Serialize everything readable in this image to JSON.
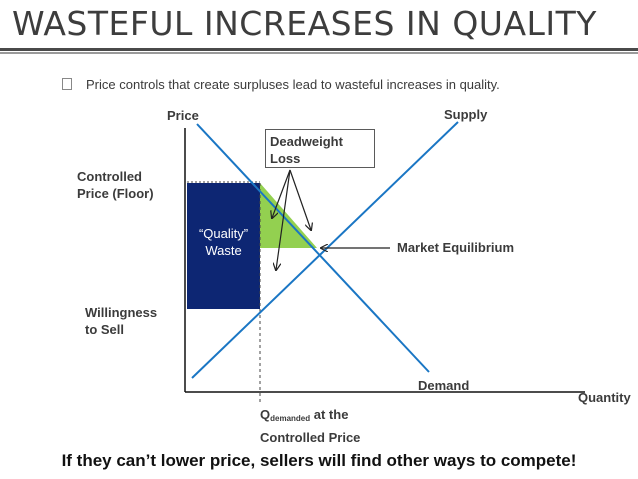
{
  "slide": {
    "title": "WASTEFUL INCREASES IN QUALITY",
    "bullet": "Price controls that create surpluses lead to wasteful increases in quality.",
    "caption": "If they can’t lower price, sellers will find other ways to compete!"
  },
  "diagram": {
    "axis_price": "Price",
    "axis_quantity": "Quantity",
    "supply_label": "Supply",
    "demand_label": "Demand",
    "controlled_price": [
      "Controlled",
      "Price (Floor)"
    ],
    "willingness": [
      "Willingness",
      "to Sell"
    ],
    "quality_waste": [
      "“Quality”",
      "Waste"
    ],
    "deadweight_loss": [
      "Deadweight",
      "Loss"
    ],
    "market_equilibrium": "Market Equilibrium",
    "q_demanded": {
      "q": "Q",
      "sub": "demanded",
      "suffix": " at the",
      "line2": "Controlled Price"
    }
  },
  "colors": {
    "supply_line": "#1a76c4",
    "demand_line": "#1a76c4",
    "quality_waste_fill": "#0d2673",
    "deadweight_green": "#93d050",
    "text": "#3b3b3b"
  }
}
